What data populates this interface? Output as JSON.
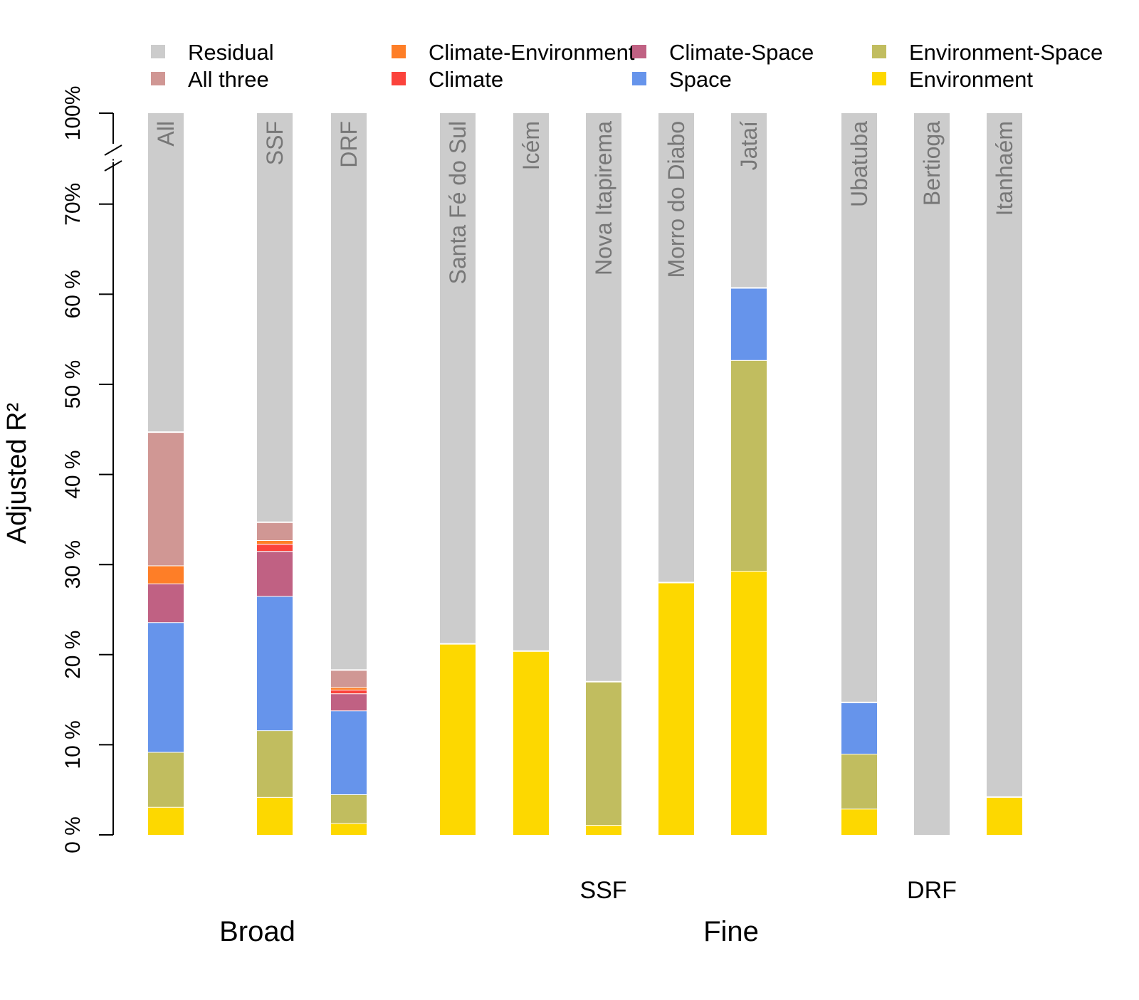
{
  "chart_data": {
    "type": "bar",
    "stacked": true,
    "ylabel": "Adjusted R²",
    "y_axis_break": {
      "from": 75,
      "to": 95
    },
    "ylim": [
      0,
      100
    ],
    "yticks": [
      {
        "value": 0,
        "label": "0 %"
      },
      {
        "value": 10,
        "label": "10 %"
      },
      {
        "value": 20,
        "label": "20 %"
      },
      {
        "value": 30,
        "label": "30 %"
      },
      {
        "value": 40,
        "label": "40 %"
      },
      {
        "value": 50,
        "label": "50 %"
      },
      {
        "value": 60,
        "label": "60 %"
      },
      {
        "value": 70,
        "label": "70%"
      },
      {
        "value": 100,
        "label": "100%"
      }
    ],
    "legend": {
      "placement": "top",
      "entries": [
        {
          "name": "Residual",
          "color": "#cccccc"
        },
        {
          "name": "All three",
          "color": "#d09794"
        },
        {
          "name": "Climate-Environment",
          "color": "#fe7e27"
        },
        {
          "name": "Climate",
          "color": "#fb433c"
        },
        {
          "name": "Climate-Space",
          "color": "#c06183"
        },
        {
          "name": "Space",
          "color": "#6694eb"
        },
        {
          "name": "Environment-Space",
          "color": "#c1bd5f"
        },
        {
          "name": "Environment",
          "color": "#fdd800"
        }
      ]
    },
    "stack_order": [
      "Environment",
      "Environment-Space",
      "Space",
      "Climate-Space",
      "Climate",
      "Climate-Environment",
      "All three"
    ],
    "categories": [
      "All",
      "SSF",
      "DRF",
      "Santa Fé do Sul",
      "Icém",
      "Nova Itapirema",
      "Morro do Diabo",
      "Jataí",
      "Ubatuba",
      "Bertioga",
      "Itanhaém"
    ],
    "series": [
      {
        "name": "Environment",
        "values": [
          3.1,
          4.2,
          1.3,
          21.2,
          20.4,
          1.1,
          28.0,
          29.3,
          2.9,
          0,
          4.2
        ]
      },
      {
        "name": "Environment-Space",
        "values": [
          6.1,
          7.4,
          3.2,
          0,
          0,
          15.9,
          0,
          23.4,
          6.1,
          0,
          0
        ]
      },
      {
        "name": "Space",
        "values": [
          14.4,
          14.9,
          9.3,
          0,
          0,
          0,
          0,
          8.0,
          5.7,
          0,
          0
        ]
      },
      {
        "name": "Climate-Space",
        "values": [
          4.3,
          5.0,
          1.9,
          0,
          0,
          0,
          0,
          0,
          0,
          0,
          0
        ]
      },
      {
        "name": "Climate",
        "values": [
          0,
          0.8,
          0.4,
          0,
          0,
          0,
          0,
          0,
          0,
          0,
          0
        ]
      },
      {
        "name": "Climate-Environment",
        "values": [
          2.0,
          0.4,
          0.3,
          0,
          0,
          0,
          0,
          0,
          0,
          0,
          0
        ]
      },
      {
        "name": "All three",
        "values": [
          14.8,
          2.0,
          1.9,
          0,
          0,
          0,
          0,
          0,
          0,
          0,
          0
        ]
      }
    ],
    "group_labels": [
      {
        "text": "SSF",
        "spans": [
          "Santa Fé do Sul",
          "Icém",
          "Nova Itapirema",
          "Morro do Diabo",
          "Jataí"
        ]
      },
      {
        "text": "DRF",
        "spans": [
          "Ubatuba",
          "Bertioga",
          "Itanhaém"
        ]
      }
    ],
    "scale_labels": [
      {
        "text": "Broad",
        "spans": [
          "All",
          "SSF",
          "DRF"
        ]
      },
      {
        "text": "Fine",
        "spans": [
          "Santa Fé do Sul",
          "Icém",
          "Nova Itapirema",
          "Morro do Diabo",
          "Jataí",
          "Ubatuba",
          "Bertioga",
          "Itanhaém"
        ]
      }
    ]
  }
}
